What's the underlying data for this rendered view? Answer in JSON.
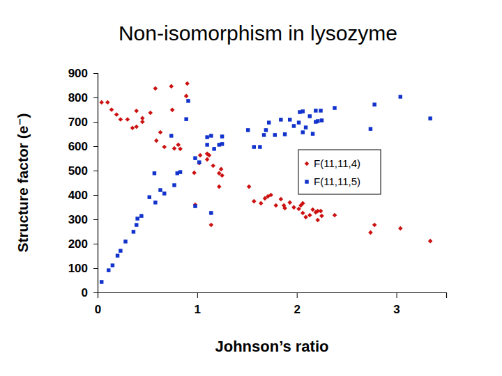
{
  "chart_data": {
    "type": "scatter",
    "title": "Non-isomorphism in lysozyme",
    "x_label": "Johnson’s ratio",
    "y_label": "Structure factor (e⁻)",
    "xlim": [
      0,
      3.5
    ],
    "xticks": [
      0,
      1,
      2,
      3
    ],
    "ylim": [
      0,
      900
    ],
    "yticks": [
      0,
      100,
      200,
      300,
      400,
      500,
      600,
      700,
      800,
      900
    ],
    "grid": false,
    "legend": "right",
    "series": [
      {
        "name": "F(11,11,4)",
        "color": "#cc1111",
        "marker": "diamond",
        "x": [
          0.04,
          0.1,
          0.14,
          0.19,
          0.23,
          0.3,
          0.35,
          0.39,
          0.39,
          0.45,
          0.45,
          0.53,
          0.58,
          0.59,
          0.63,
          0.67,
          0.74,
          0.75,
          0.77,
          0.81,
          0.83,
          0.89,
          0.9,
          0.97,
          0.98,
          1.02,
          1.03,
          1.1,
          1.1,
          1.12,
          1.14,
          1.16,
          1.22,
          1.24,
          1.22,
          1.25,
          1.52,
          1.57,
          1.64,
          1.68,
          1.71,
          1.74,
          1.79,
          1.84,
          1.87,
          1.88,
          1.93,
          1.97,
          2.02,
          2.04,
          2.06,
          2.06,
          2.09,
          2.13,
          2.16,
          2.19,
          2.21,
          2.21,
          2.24,
          2.25,
          2.38,
          2.74,
          2.78,
          3.04,
          3.34
        ],
        "values": [
          780,
          780,
          750,
          730,
          710,
          710,
          675,
          680,
          745,
          715,
          700,
          737,
          837,
          623,
          657,
          597,
          846,
          749,
          591,
          606,
          589,
          806,
          857,
          491,
          360,
          531,
          563,
          569,
          546,
          563,
          277,
          520,
          489,
          506,
          434,
          480,
          434,
          374,
          366,
          386,
          394,
          400,
          357,
          383,
          357,
          346,
          369,
          349,
          343,
          357,
          366,
          326,
          309,
          317,
          340,
          329,
          334,
          297,
          334,
          314,
          317,
          246,
          277,
          263,
          211
        ]
      },
      {
        "name": "F(11,11,5)",
        "color": "#1133cc",
        "marker": "square",
        "x": [
          0.04,
          0.11,
          0.15,
          0.2,
          0.23,
          0.28,
          0.36,
          0.39,
          0.4,
          0.44,
          0.52,
          0.57,
          0.58,
          0.63,
          0.67,
          0.74,
          0.77,
          0.8,
          0.83,
          0.89,
          0.91,
          0.98,
          0.98,
          1.02,
          1.1,
          1.1,
          1.14,
          1.14,
          1.17,
          1.22,
          1.25,
          1.25,
          1.51,
          1.57,
          1.63,
          1.67,
          1.69,
          1.72,
          1.78,
          1.84,
          1.88,
          1.93,
          1.97,
          2.02,
          2.03,
          2.06,
          2.06,
          2.09,
          2.13,
          2.16,
          2.19,
          2.19,
          2.21,
          2.24,
          2.25,
          2.38,
          2.74,
          2.78,
          3.04,
          3.34
        ],
        "values": [
          43,
          91,
          111,
          151,
          171,
          209,
          249,
          277,
          303,
          314,
          391,
          489,
          369,
          420,
          406,
          643,
          440,
          489,
          494,
          711,
          786,
          354,
          551,
          534,
          637,
          606,
          643,
          326,
          589,
          606,
          640,
          609,
          666,
          597,
          597,
          646,
          666,
          697,
          646,
          709,
          649,
          709,
          683,
          697,
          740,
          743,
          657,
          677,
          723,
          651,
          700,
          746,
          703,
          746,
          706,
          757,
          671,
          771,
          803,
          714
        ]
      }
    ]
  }
}
